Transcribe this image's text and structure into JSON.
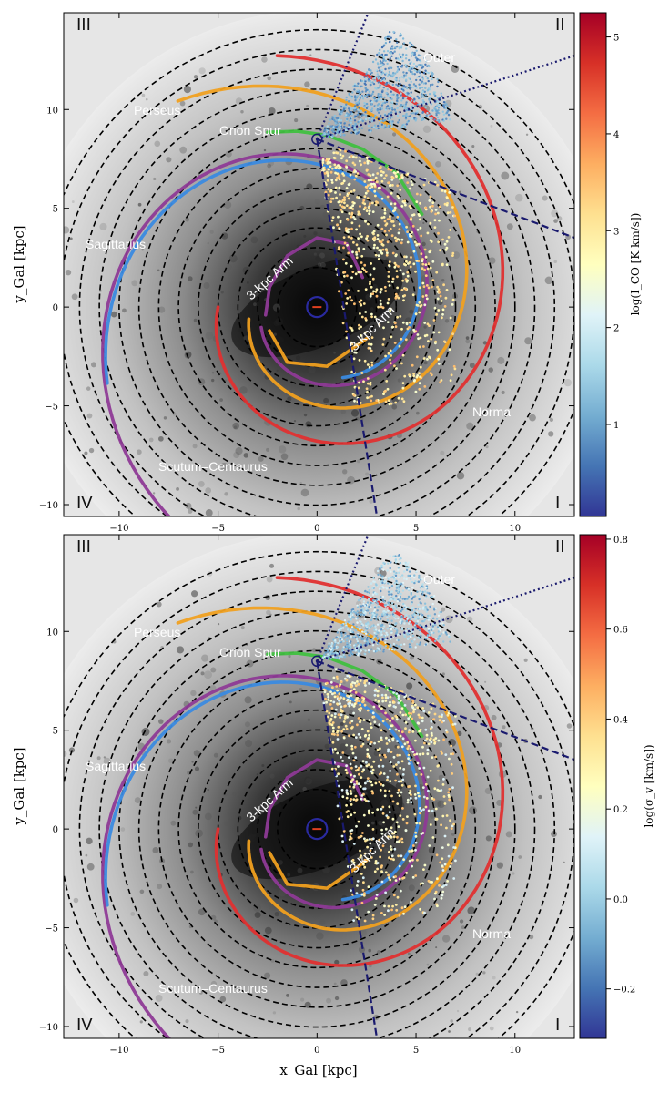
{
  "chart_data": [
    {
      "type": "scatter",
      "panel": "top",
      "ylabel": "y_Gal [kpc]",
      "xlabel": "",
      "xlim": [
        -12.8,
        13.0
      ],
      "ylim": [
        -10.6,
        14.9
      ],
      "xticks": [
        -10,
        -5,
        0,
        5,
        10
      ],
      "yticks": [
        -10,
        -5,
        0,
        5,
        10
      ],
      "colorbar": {
        "label": "log(I_CO [K km/s])",
        "range": [
          0.05,
          5.25
        ],
        "ticks": [
          1,
          2,
          3,
          4,
          5
        ],
        "colormap": "RdYlBu_r"
      },
      "quadrant_labels": [
        "III",
        "II",
        "IV",
        "I"
      ],
      "arm_labels": [
        "Perseus",
        "Orion Spur",
        "Outer",
        "Sagittarius",
        "3-kpc Arm",
        "3-kpc Arm",
        "Norma",
        "Scutum–Centaurus"
      ],
      "point_color_ranges": {
        "near_sun": [
          0.5,
          1.6
        ],
        "inner": [
          2.4,
          3.6
        ]
      }
    },
    {
      "type": "scatter",
      "panel": "bottom",
      "ylabel": "y_Gal [kpc]",
      "xlabel": "x_Gal [kpc]",
      "xlim": [
        -12.8,
        13.0
      ],
      "ylim": [
        -10.6,
        14.9
      ],
      "xticks": [
        -10,
        -5,
        0,
        5,
        10
      ],
      "yticks": [
        -10,
        -5,
        0,
        5,
        10
      ],
      "colorbar": {
        "label": "log(σ_v [km/s])",
        "range": [
          -0.31,
          0.81
        ],
        "ticks": [
          -0.2,
          0.0,
          0.2,
          0.4,
          0.6,
          0.8
        ],
        "colormap": "RdYlBu_r"
      },
      "quadrant_labels": [
        "III",
        "II",
        "IV",
        "I"
      ],
      "arm_labels": [
        "Perseus",
        "Orion Spur",
        "Outer",
        "Sagittarius",
        "3-kpc Arm",
        "3-kpc Arm",
        "Norma",
        "Scutum–Centaurus"
      ],
      "point_color_ranges": {
        "near_sun": [
          -0.15,
          0.15
        ],
        "inner": [
          0.1,
          0.45
        ]
      }
    }
  ],
  "sun": {
    "x": 0,
    "y": 8.5
  },
  "galactic_center": {
    "x": 0,
    "y": 0
  },
  "rings_kpc": [
    2,
    3,
    4,
    5,
    6,
    7,
    8,
    9,
    10,
    11,
    12,
    13,
    14
  ],
  "arms": [
    {
      "name": "Norma-Outer",
      "color": "#8e3a96",
      "r0": 3.0,
      "theta0": -70,
      "theta1": 380,
      "pitch": 12.0
    },
    {
      "name": "Perseus",
      "color": "#e03030",
      "r0": 5.0,
      "theta0": -90,
      "theta1": 190,
      "pitch": 11.0
    },
    {
      "name": "Sagittarius",
      "color": "#f0a020",
      "r0": 3.5,
      "theta0": -80,
      "theta1": 215,
      "pitch": 14.0
    },
    {
      "name": "Scutum-Centaurus",
      "color": "#3a8ae0",
      "r0": 3.8,
      "theta0": 20,
      "theta1": 290,
      "pitch": 13.0
    },
    {
      "name": "Orion Spur",
      "color": "#40c040",
      "seg": [
        [
          -2.5,
          8.85
        ],
        [
          -1.0,
          8.9
        ],
        [
          0.5,
          8.7
        ],
        [
          2.3,
          8.0
        ],
        [
          4.0,
          6.8
        ],
        [
          5.3,
          4.7
        ]
      ]
    },
    {
      "name": "3-kpc Arm",
      "color": "#8e3a96",
      "seg": [
        [
          -2.6,
          -0.4
        ],
        [
          -2.4,
          1.0
        ],
        [
          -1.5,
          2.6
        ],
        [
          0.0,
          3.5
        ],
        [
          1.5,
          3.2
        ],
        [
          2.3,
          1.5
        ]
      ]
    },
    {
      "name": "3-kpc Arm far",
      "color": "#f0a020",
      "seg": [
        [
          -2.4,
          -1.2
        ],
        [
          -1.5,
          -2.8
        ],
        [
          0.5,
          -3.0
        ],
        [
          2.5,
          -1.6
        ]
      ]
    }
  ]
}
